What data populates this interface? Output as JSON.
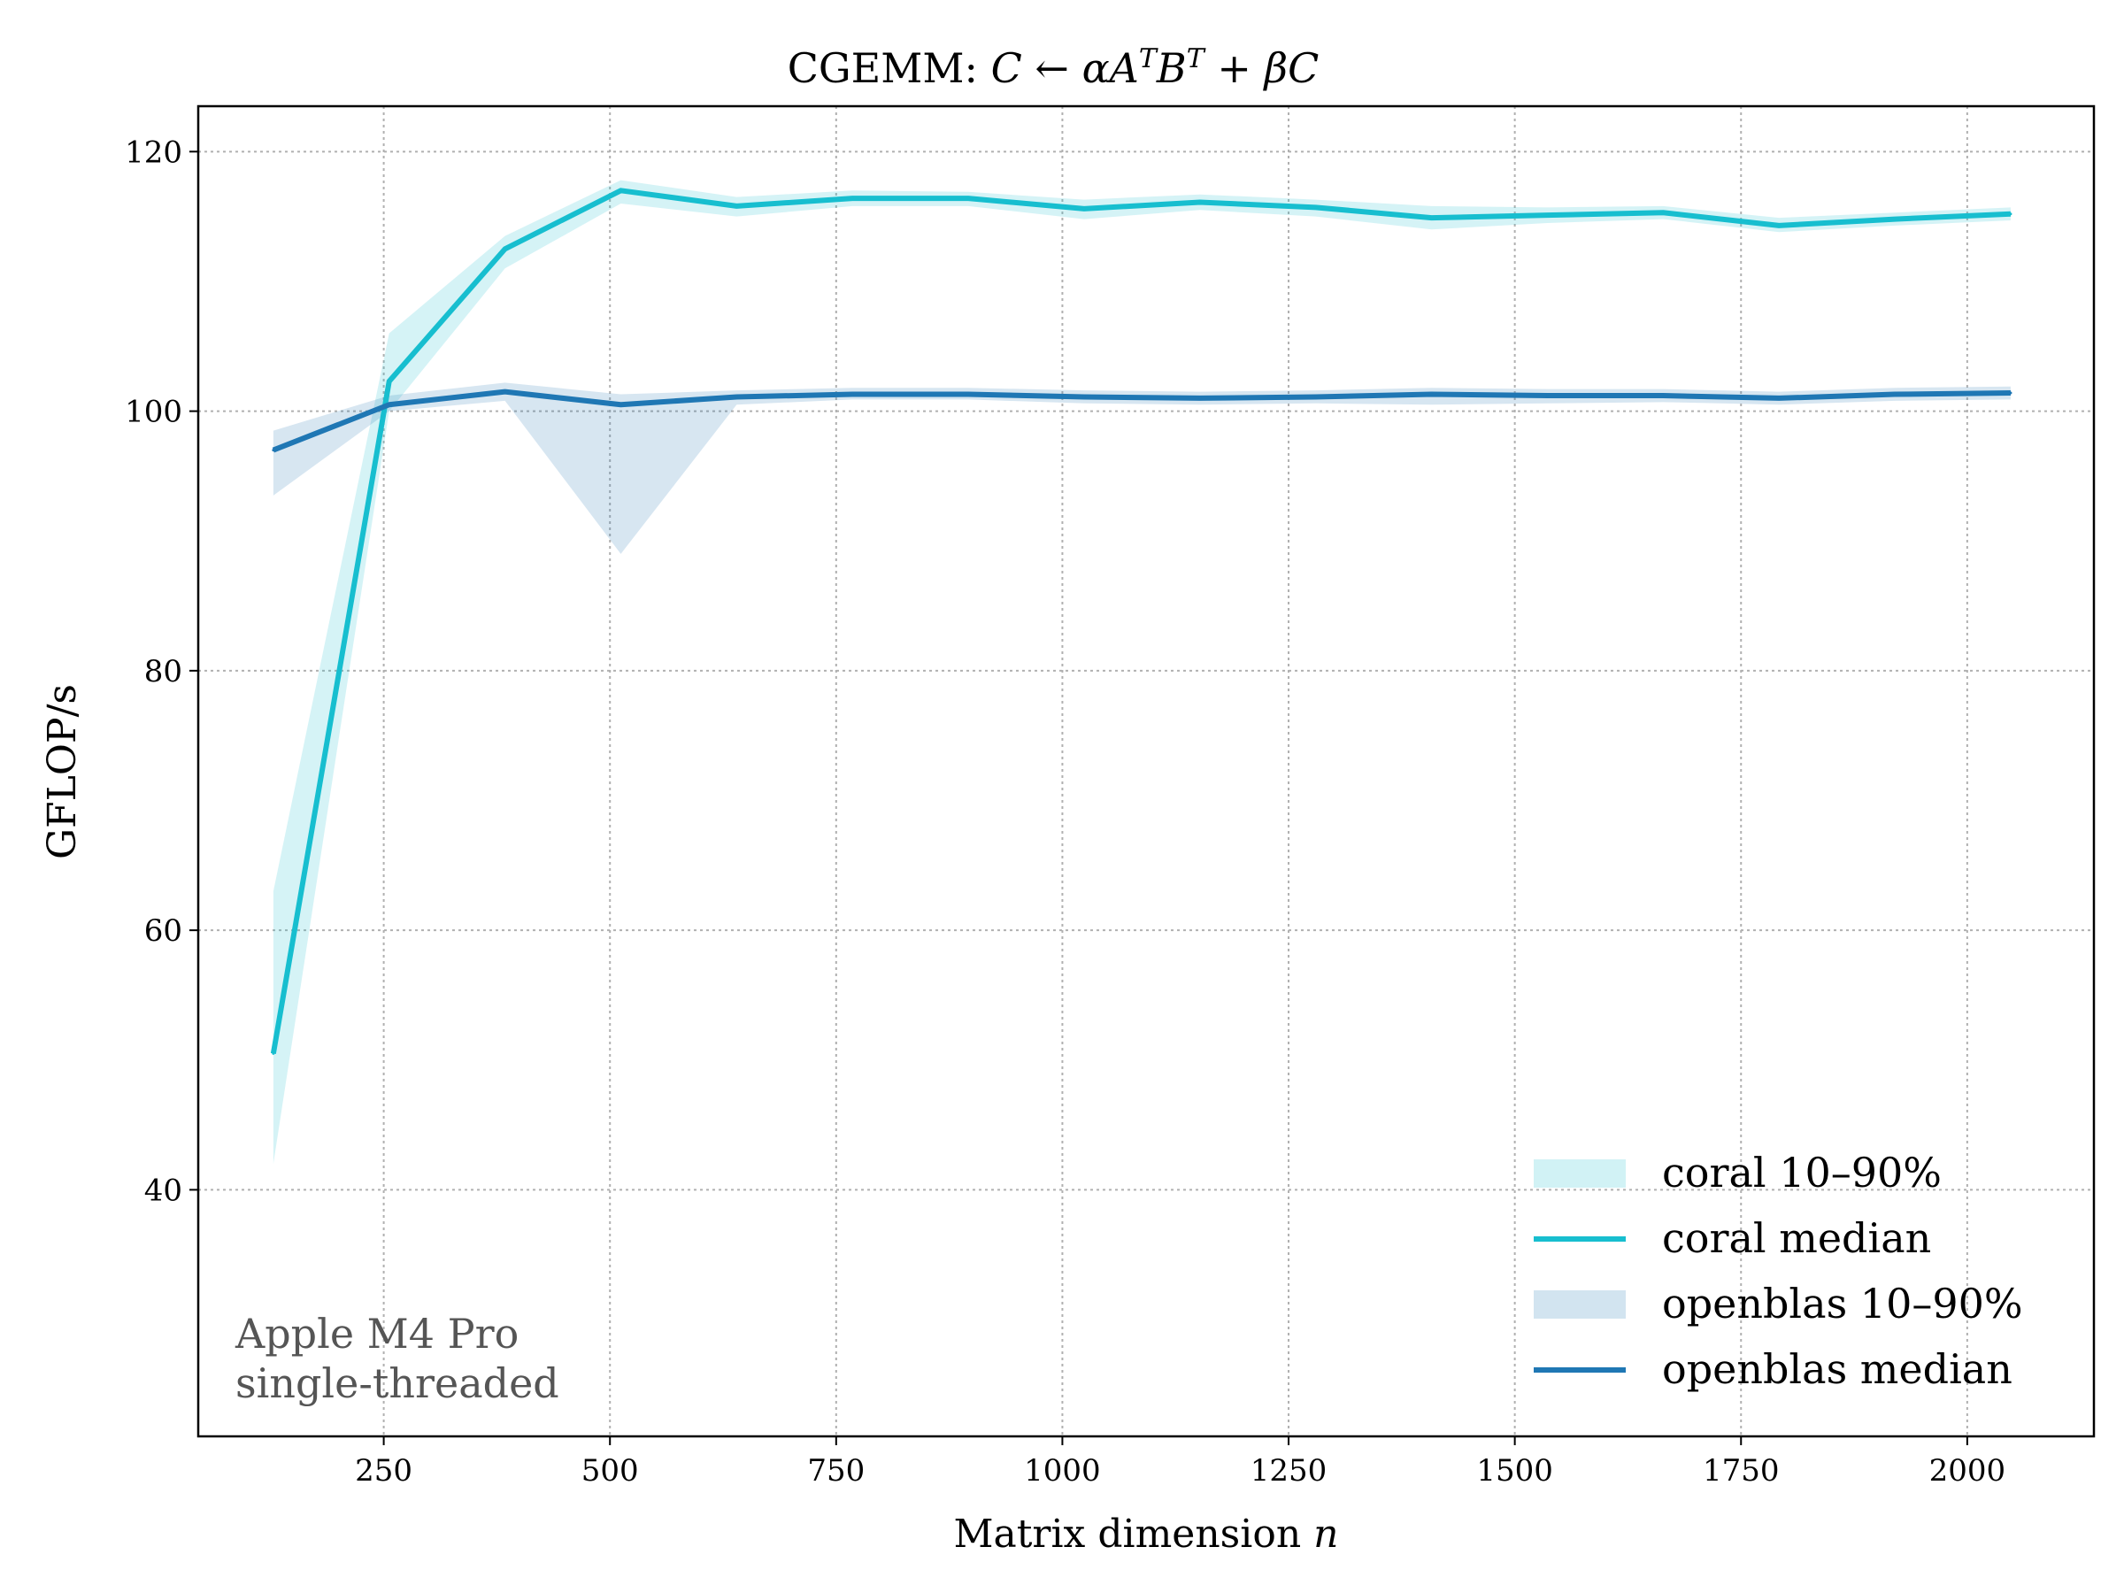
{
  "chart_data": {
    "type": "line",
    "title": "CGEMM: C ← αA^T B^T + βC",
    "title_parts": {
      "prefix": "CGEMM: ",
      "lhs": "C",
      "arrow": " ← ",
      "alpha_a": "αA",
      "sup1": "T",
      "b": "B",
      "sup2": "T",
      "rest": " + βC"
    },
    "xlabel": "Matrix dimension",
    "xlabel_var": "n",
    "ylabel": "GFLOP/s",
    "xlim": [
      45,
      2140
    ],
    "ylim": [
      21,
      123.5
    ],
    "xticks": [
      250,
      500,
      750,
      1000,
      1250,
      1500,
      1750,
      2000
    ],
    "yticks": [
      40,
      60,
      80,
      100,
      120
    ],
    "grid": true,
    "legend_position": "lower-right",
    "annotation": [
      "Apple M4 Pro",
      "single-threaded"
    ],
    "x": [
      128,
      256,
      384,
      512,
      640,
      768,
      896,
      1024,
      1152,
      1280,
      1408,
      1536,
      1664,
      1792,
      1920,
      2048
    ],
    "series": [
      {
        "name": "coral median",
        "color": "#17becf",
        "kind": "line",
        "values": [
          50.5,
          102.3,
          112.5,
          117.0,
          115.8,
          116.4,
          116.4,
          115.6,
          116.1,
          115.7,
          114.9,
          115.1,
          115.3,
          114.3,
          114.8,
          115.2
        ]
      },
      {
        "name": "coral 10–90%",
        "color": "#17becf",
        "kind": "band",
        "low": [
          42.0,
          100.0,
          111.0,
          116.0,
          115.0,
          115.8,
          115.8,
          114.8,
          115.5,
          115.0,
          114.0,
          114.5,
          114.8,
          113.8,
          114.3,
          114.7
        ],
        "high": [
          63.0,
          106.0,
          113.5,
          117.8,
          116.5,
          117.0,
          116.9,
          116.3,
          116.7,
          116.3,
          115.8,
          115.7,
          115.8,
          114.9,
          115.3,
          115.7
        ]
      },
      {
        "name": "openblas median",
        "color": "#1f77b4",
        "kind": "line",
        "values": [
          97.0,
          100.5,
          101.5,
          100.5,
          101.1,
          101.3,
          101.3,
          101.1,
          101.0,
          101.1,
          101.3,
          101.2,
          101.2,
          101.0,
          101.3,
          101.4
        ]
      },
      {
        "name": "openblas 10–90%",
        "color": "#1f77b4",
        "kind": "band",
        "low": [
          93.5,
          100.0,
          100.8,
          89.0,
          100.5,
          100.9,
          100.9,
          100.6,
          100.5,
          100.6,
          100.5,
          100.6,
          100.7,
          100.5,
          100.8,
          100.9
        ],
        "high": [
          98.5,
          101.2,
          102.2,
          101.3,
          101.6,
          101.8,
          101.8,
          101.6,
          101.5,
          101.6,
          101.8,
          101.7,
          101.7,
          101.5,
          101.8,
          101.9
        ]
      }
    ]
  }
}
